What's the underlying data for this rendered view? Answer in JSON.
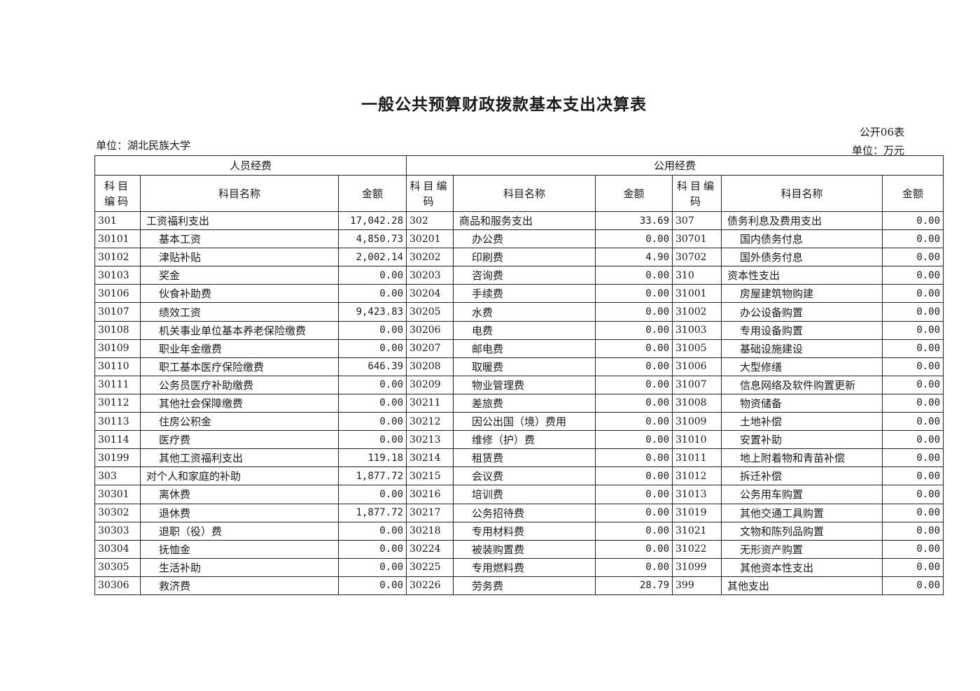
{
  "title": "一般公共预算财政拨款基本支出决算表",
  "unit_left": "单位：湖北民族大学",
  "form_no": "公开06表",
  "unit_right": "单位：万元",
  "table": {
    "group_headers": [
      "人员经费",
      "公用经费"
    ],
    "column_headers": [
      "科目编码",
      "科目名称",
      "金额",
      "科目编码",
      "科目名称",
      "金额",
      "科目编码",
      "科目名称",
      "金额"
    ],
    "rows": [
      [
        "301",
        "工资福利支出",
        "17,042.28",
        "302",
        "商品和服务支出",
        "33.69",
        "307",
        "债务利息及费用支出",
        "0.00"
      ],
      [
        "30101",
        "基本工资",
        "4,850.73",
        "30201",
        "办公费",
        "0.00",
        "30701",
        "国内债务付息",
        "0.00"
      ],
      [
        "30102",
        "津贴补贴",
        "2,002.14",
        "30202",
        "印刷费",
        "4.90",
        "30702",
        "国外债务付息",
        "0.00"
      ],
      [
        "30103",
        "奖金",
        "0.00",
        "30203",
        "咨询费",
        "0.00",
        "310",
        "资本性支出",
        "0.00"
      ],
      [
        "30106",
        "伙食补助费",
        "0.00",
        "30204",
        "手续费",
        "0.00",
        "31001",
        "房屋建筑物购建",
        "0.00"
      ],
      [
        "30107",
        "绩效工资",
        "9,423.83",
        "30205",
        "水费",
        "0.00",
        "31002",
        "办公设备购置",
        "0.00"
      ],
      [
        "30108",
        "机关事业单位基本养老保险缴费",
        "0.00",
        "30206",
        "电费",
        "0.00",
        "31003",
        "专用设备购置",
        "0.00"
      ],
      [
        "30109",
        "职业年金缴费",
        "0.00",
        "30207",
        "邮电费",
        "0.00",
        "31005",
        "基础设施建设",
        "0.00"
      ],
      [
        "30110",
        "职工基本医疗保险缴费",
        "646.39",
        "30208",
        "取暖费",
        "0.00",
        "31006",
        "大型修缮",
        "0.00"
      ],
      [
        "30111",
        "公务员医疗补助缴费",
        "0.00",
        "30209",
        "物业管理费",
        "0.00",
        "31007",
        "信息网络及软件购置更新",
        "0.00"
      ],
      [
        "30112",
        "其他社会保障缴费",
        "0.00",
        "30211",
        "差旅费",
        "0.00",
        "31008",
        "物资储备",
        "0.00"
      ],
      [
        "30113",
        "住房公积金",
        "0.00",
        "30212",
        "因公出国（境）费用",
        "0.00",
        "31009",
        "土地补偿",
        "0.00"
      ],
      [
        "30114",
        "医疗费",
        "0.00",
        "30213",
        "维修（护）费",
        "0.00",
        "31010",
        "安置补助",
        "0.00"
      ],
      [
        "30199",
        "其他工资福利支出",
        "119.18",
        "30214",
        "租赁费",
        "0.00",
        "31011",
        "地上附着物和青苗补偿",
        "0.00"
      ],
      [
        "303",
        "对个人和家庭的补助",
        "1,877.72",
        "30215",
        "会议费",
        "0.00",
        "31012",
        "拆迁补偿",
        "0.00"
      ],
      [
        "30301",
        "离休费",
        "0.00",
        "30216",
        "培训费",
        "0.00",
        "31013",
        "公务用车购置",
        "0.00"
      ],
      [
        "30302",
        "退休费",
        "1,877.72",
        "30217",
        "公务招待费",
        "0.00",
        "31019",
        "其他交通工具购置",
        "0.00"
      ],
      [
        "30303",
        "退职（役）费",
        "0.00",
        "30218",
        "专用材料费",
        "0.00",
        "31021",
        "文物和陈列品购置",
        "0.00"
      ],
      [
        "30304",
        "抚恤金",
        "0.00",
        "30224",
        "被装购置费",
        "0.00",
        "31022",
        "无形资产购置",
        "0.00"
      ],
      [
        "30305",
        "生活补助",
        "0.00",
        "30225",
        "专用燃料费",
        "0.00",
        "31099",
        "其他资本性支出",
        "0.00"
      ],
      [
        "30306",
        "救济费",
        "0.00",
        "30226",
        "劳务费",
        "28.79",
        "399",
        "其他支出",
        "0.00"
      ]
    ]
  }
}
